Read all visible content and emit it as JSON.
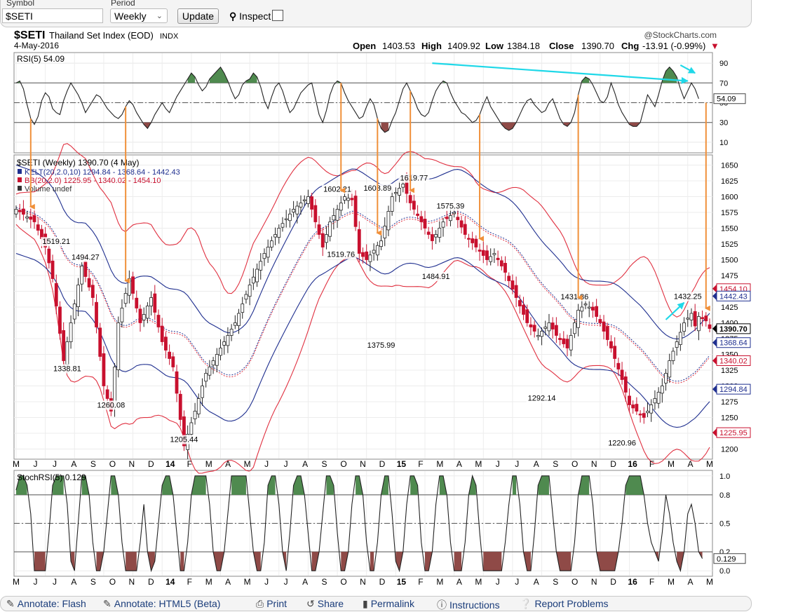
{
  "toolbar": {
    "symbol_label": "Symbol",
    "symbol_value": "$SETI",
    "period_label": "Period",
    "period_value": "Weekly",
    "update_label": "Update",
    "inspect_label": "Inspect"
  },
  "header": {
    "symbol": "$SETI",
    "name": "Thailand Set Index (EOD)",
    "exchange": "INDX",
    "date": "4-May-2016",
    "brand": "@StockCharts.com",
    "open_label": "Open",
    "open": "1403.53",
    "high_label": "High",
    "high": "1409.92",
    "low_label": "Low",
    "low": "1384.18",
    "close_label": "Close",
    "close": "1390.70",
    "chg_label": "Chg",
    "chg": "-13.91 (-0.99%)"
  },
  "bottombar": {
    "annotate_flash": "Annotate: Flash",
    "annotate_html5": "Annotate: HTML5 (Beta)",
    "print": "Print",
    "share": "Share",
    "permalink": "Permalink",
    "instructions": "Instructions",
    "report": "Report Problems"
  },
  "chart_data": [
    {
      "type": "line",
      "name": "rsi-panel",
      "title": "RSI(5) 54.09",
      "ylim": [
        0,
        100
      ],
      "y_ticks": [
        10,
        30,
        50,
        70,
        90
      ],
      "overbought": 70,
      "oversold": 30,
      "last_value_label": "54.09",
      "series": [
        {
          "name": "RSI(5)",
          "values": [
            70,
            72,
            64,
            48,
            34,
            28,
            36,
            52,
            60,
            56,
            44,
            40,
            38,
            52,
            62,
            70,
            64,
            58,
            50,
            40,
            46,
            52,
            58,
            56,
            50,
            44,
            40,
            36,
            34,
            38,
            46,
            52,
            48,
            40,
            34,
            28,
            24,
            30,
            38,
            44,
            50,
            44,
            40,
            48,
            56,
            62,
            68,
            74,
            80,
            76,
            68,
            62,
            66,
            74,
            78,
            82,
            86,
            80,
            72,
            62,
            54,
            58,
            68,
            72,
            74,
            80,
            76,
            66,
            52,
            44,
            56,
            66,
            70,
            62,
            50,
            40,
            44,
            52,
            60,
            64,
            68,
            70,
            54,
            38,
            30,
            42,
            58,
            68,
            72,
            70,
            60,
            52,
            46,
            40,
            34,
            36,
            46,
            54,
            48,
            34,
            24,
            20,
            22,
            32,
            40,
            52,
            64,
            70,
            62,
            54,
            44,
            38,
            36,
            40,
            52,
            62,
            68,
            72,
            70,
            60,
            52,
            46,
            40,
            38,
            34,
            30,
            32,
            38,
            48,
            56,
            46,
            40,
            34,
            28,
            24,
            22,
            24,
            30,
            38,
            46,
            52,
            54,
            48,
            44,
            40,
            42,
            50,
            54,
            44,
            34,
            28,
            26,
            30,
            40,
            58,
            72,
            76,
            74,
            68,
            60,
            52,
            50,
            56,
            70,
            60,
            48,
            40,
            34,
            28,
            26,
            26,
            30,
            44,
            58,
            52,
            46,
            58,
            72,
            82,
            86,
            82,
            76,
            64,
            54,
            62,
            70,
            64,
            54
          ]
        }
      ],
      "annotations": [
        {
          "type": "cyan-trendline",
          "from_week": 114,
          "to_week": 184,
          "from_value": 90,
          "to_value": 72
        }
      ]
    },
    {
      "type": "candlestick",
      "name": "price-panel",
      "title": "$SETI (Weekly) 1390.70 (4 May)",
      "legend": [
        "KELT(20,2.0,10) 1294.84 - 1368.64 - 1442.43",
        "BB(20,2.0) 1225.95 - 1340.02 - 1454.10",
        "Volume undef"
      ],
      "ylim": [
        1185,
        1665
      ],
      "y_ticks": [
        1200,
        1225,
        1250,
        1275,
        1300,
        1325,
        1350,
        1375,
        1400,
        1425,
        1450,
        1475,
        1500,
        1525,
        1550,
        1575,
        1600,
        1625,
        1650
      ],
      "x_labels": [
        "M",
        "J",
        "J",
        "A",
        "S",
        "O",
        "N",
        "D",
        "14",
        "F",
        "M",
        "A",
        "M",
        "J",
        "J",
        "A",
        "S",
        "O",
        "N",
        "D",
        "15",
        "F",
        "M",
        "A",
        "M",
        "J",
        "J",
        "A",
        "S",
        "O",
        "N",
        "D",
        "16",
        "F",
        "M",
        "A",
        "M"
      ],
      "anchors": [
        [
          0,
          1580
        ],
        [
          5,
          1560
        ],
        [
          8,
          1520
        ],
        [
          10,
          1470
        ],
        [
          13,
          1340
        ],
        [
          16,
          1430
        ],
        [
          18,
          1490
        ],
        [
          21,
          1440
        ],
        [
          24,
          1300
        ],
        [
          26,
          1260
        ],
        [
          28,
          1400
        ],
        [
          31,
          1470
        ],
        [
          34,
          1400
        ],
        [
          37,
          1440
        ],
        [
          40,
          1370
        ],
        [
          43,
          1330
        ],
        [
          46,
          1205
        ],
        [
          49,
          1260
        ],
        [
          52,
          1320
        ],
        [
          56,
          1360
        ],
        [
          60,
          1400
        ],
        [
          64,
          1460
        ],
        [
          68,
          1510
        ],
        [
          72,
          1550
        ],
        [
          76,
          1580
        ],
        [
          80,
          1600
        ],
        [
          82,
          1560
        ],
        [
          84,
          1520
        ],
        [
          86,
          1560
        ],
        [
          90,
          1600
        ],
        [
          92,
          1595
        ],
        [
          94,
          1510
        ],
        [
          96,
          1500
        ],
        [
          100,
          1530
        ],
        [
          103,
          1600
        ],
        [
          106,
          1620
        ],
        [
          108,
          1590
        ],
        [
          111,
          1560
        ],
        [
          114,
          1530
        ],
        [
          117,
          1560
        ],
        [
          120,
          1575
        ],
        [
          123,
          1540
        ],
        [
          126,
          1520
        ],
        [
          129,
          1500
        ],
        [
          131,
          1510
        ],
        [
          134,
          1480
        ],
        [
          137,
          1440
        ],
        [
          140,
          1400
        ],
        [
          143,
          1380
        ],
        [
          146,
          1400
        ],
        [
          148,
          1380
        ],
        [
          151,
          1360
        ],
        [
          154,
          1420
        ],
        [
          156,
          1430
        ],
        [
          158,
          1420
        ],
        [
          160,
          1400
        ],
        [
          163,
          1360
        ],
        [
          166,
          1310
        ],
        [
          168,
          1270
        ],
        [
          170,
          1260
        ],
        [
          172,
          1250
        ],
        [
          175,
          1280
        ],
        [
          177,
          1300
        ],
        [
          179,
          1340
        ],
        [
          181,
          1370
        ],
        [
          183,
          1400
        ],
        [
          185,
          1415
        ],
        [
          186,
          1395
        ],
        [
          187,
          1410
        ],
        [
          189,
          1403
        ],
        [
          190,
          1391
        ]
      ],
      "labeled_points": [
        {
          "week": 11,
          "value": 1519.21,
          "label": "1519.21"
        },
        {
          "week": 14,
          "value": 1338.81,
          "label": "1338.81"
        },
        {
          "week": 19,
          "value": 1494.27,
          "label": "1494.27"
        },
        {
          "week": 26,
          "value": 1260.08,
          "label": "1260.08"
        },
        {
          "week": 46,
          "value": 1205.44,
          "label": "1205.44"
        },
        {
          "week": 89,
          "value": 1519.76,
          "label": "1519.76"
        },
        {
          "week": 88,
          "value": 1602.21,
          "label": "1602.21"
        },
        {
          "week": 99,
          "value": 1603.89,
          "label": "1603.89"
        },
        {
          "week": 100,
          "value": 1375.99,
          "label": "1375.99"
        },
        {
          "week": 109,
          "value": 1619.77,
          "label": "1619.77"
        },
        {
          "week": 115,
          "value": 1484.91,
          "label": "1484.91"
        },
        {
          "week": 119,
          "value": 1575.39,
          "label": "1575.39"
        },
        {
          "week": 144,
          "value": 1292.14,
          "label": "1292.14"
        },
        {
          "week": 153,
          "value": 1431.86,
          "label": "1431.86"
        },
        {
          "week": 166,
          "value": 1220.96,
          "label": "1220.96"
        },
        {
          "week": 184,
          "value": 1432.25,
          "label": "1432.25"
        }
      ],
      "right_axis_labels": [
        {
          "value": 1454.1,
          "label": "1454.10",
          "color": "#c8102e"
        },
        {
          "value": 1442.43,
          "label": "1442.43",
          "color": "#1f2f8f"
        },
        {
          "value": 1390.7,
          "label": "1390.70",
          "color": "#000000"
        },
        {
          "value": 1368.64,
          "label": "1368.64",
          "color": "#1f2f8f"
        },
        {
          "value": 1340.02,
          "label": "1340.02",
          "color": "#c8102e"
        },
        {
          "value": 1294.84,
          "label": "1294.84",
          "color": "#1f2f8f"
        },
        {
          "value": 1225.95,
          "label": "1225.95",
          "color": "#c8102e"
        }
      ],
      "arrow_weeks": [
        4,
        30,
        89,
        99,
        108,
        127,
        154,
        189
      ],
      "colors": {
        "up": "#ffffff",
        "down": "#c8102e",
        "kelt": "#1f2f8f",
        "bb": "#e03040",
        "arrow": "#f0903a",
        "cyan": "#1fd8e8"
      }
    },
    {
      "type": "line",
      "name": "stochrsi-panel",
      "title": "StochRSI(5) 0.129",
      "ylim": [
        -0.05,
        1.05
      ],
      "y_ticks": [
        "0.0",
        "0.2",
        "0.5",
        "0.8",
        "1.0"
      ],
      "upper": 0.8,
      "lower": 0.2,
      "last_value_label": "0.129",
      "series": [
        {
          "name": "StochRSI(5)",
          "values": [
            0.85,
            1,
            1,
            0.9,
            0.6,
            0,
            0,
            0,
            0,
            0.4,
            0.9,
            1,
            1,
            1,
            0.7,
            0.1,
            0,
            0.5,
            1,
            1,
            0.8,
            0.3,
            0,
            0,
            0.2,
            0.6,
            1,
            1,
            0.8,
            0.3,
            0,
            0,
            0,
            0,
            0.3,
            0.7,
            0.2,
            0,
            0.1,
            0.5,
            0.9,
            1,
            1,
            0.8,
            0.4,
            0,
            0,
            0.3,
            0.8,
            1,
            1,
            1,
            1,
            0.7,
            0.2,
            0,
            0,
            0.2,
            0.6,
            1,
            1,
            1,
            1,
            1,
            0.6,
            0.2,
            0,
            0,
            0.3,
            0.9,
            1,
            1,
            0.7,
            0.2,
            0,
            0.4,
            0.9,
            1,
            1,
            0.8,
            0.4,
            0,
            0,
            0.2,
            0.6,
            1,
            1,
            0.9,
            0.4,
            0,
            0,
            0.2,
            0.7,
            1,
            1,
            0.8,
            0.3,
            0,
            0,
            0.3,
            0.8,
            1,
            1,
            0.6,
            0.1,
            0,
            0.2,
            0.7,
            1,
            1,
            0.9,
            0.3,
            0,
            0,
            0.2,
            0.7,
            1,
            1,
            0.8,
            0.3,
            0,
            0,
            0,
            0.3,
            0.8,
            1,
            0.9,
            0.4,
            0,
            0,
            0,
            0,
            0,
            0,
            0.3,
            0.7,
            1,
            1,
            0.7,
            0.2,
            0,
            0,
            0.4,
            0.9,
            1,
            1,
            1,
            0.6,
            0.2,
            0,
            0,
            0,
            0,
            0.3,
            0.8,
            1,
            1,
            1,
            0.7,
            0.2,
            0,
            0,
            0,
            0,
            0,
            0.2,
            0.5,
            0.9,
            1,
            1,
            1,
            1,
            0.8,
            0.5,
            0.3,
            0.2,
            0.1,
            0.4,
            0.8,
            0.6,
            0.3,
            0.1,
            0,
            0.2,
            0.6,
            0.7,
            0.5,
            0.2,
            0.129
          ]
        }
      ]
    }
  ]
}
